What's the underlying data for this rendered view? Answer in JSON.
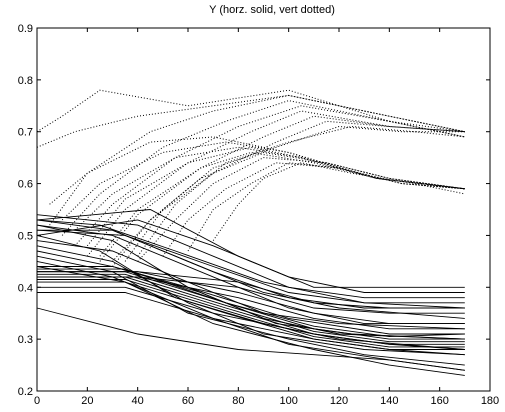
{
  "chart_data": {
    "type": "line",
    "title": "Y (horz. solid, vert dotted)",
    "xlabel": "",
    "ylabel": "",
    "xlim": [
      0,
      180
    ],
    "ylim": [
      0.2,
      0.9
    ],
    "x_ticks": [
      0,
      20,
      40,
      60,
      80,
      100,
      120,
      140,
      160,
      180
    ],
    "y_ticks": [
      0.2,
      0.3,
      0.4,
      0.5,
      0.6,
      0.7,
      0.8,
      0.9
    ],
    "grid": false,
    "legend": "none",
    "series_groups": [
      {
        "style": "solid",
        "color": "#000000",
        "description_visible": "horz.",
        "curves": [
          {
            "x": [
              0,
              35,
              75,
              110,
              140,
              170
            ],
            "y": [
              0.42,
              0.42,
              0.36,
              0.31,
              0.29,
              0.29
            ]
          },
          {
            "x": [
              0,
              35,
              75,
              110,
              140,
              170
            ],
            "y": [
              0.43,
              0.43,
              0.37,
              0.32,
              0.3,
              0.3
            ]
          },
          {
            "x": [
              0,
              35,
              75,
              110,
              140,
              170
            ],
            "y": [
              0.415,
              0.415,
              0.355,
              0.305,
              0.285,
              0.285
            ]
          },
          {
            "x": [
              0,
              35,
              75,
              110,
              140,
              170
            ],
            "y": [
              0.425,
              0.425,
              0.365,
              0.315,
              0.295,
              0.295
            ]
          },
          {
            "x": [
              0,
              35,
              75,
              110,
              140,
              170
            ],
            "y": [
              0.435,
              0.435,
              0.37,
              0.325,
              0.305,
              0.31
            ]
          },
          {
            "x": [
              0,
              35,
              75,
              110,
              140,
              170
            ],
            "y": [
              0.41,
              0.41,
              0.35,
              0.3,
              0.28,
              0.28
            ]
          },
          {
            "x": [
              0,
              40,
              80,
              110,
              140,
              170
            ],
            "y": [
              0.42,
              0.42,
              0.38,
              0.34,
              0.32,
              0.32
            ]
          },
          {
            "x": [
              0,
              40,
              80,
              110,
              140,
              170
            ],
            "y": [
              0.43,
              0.43,
              0.39,
              0.35,
              0.33,
              0.33
            ]
          },
          {
            "x": [
              0,
              30,
              70,
              100,
              130,
              170
            ],
            "y": [
              0.52,
              0.5,
              0.42,
              0.36,
              0.33,
              0.33
            ]
          },
          {
            "x": [
              0,
              30,
              70,
              100,
              130,
              170
            ],
            "y": [
              0.53,
              0.51,
              0.43,
              0.38,
              0.36,
              0.36
            ]
          },
          {
            "x": [
              0,
              35,
              70,
              100,
              130,
              170
            ],
            "y": [
              0.51,
              0.5,
              0.44,
              0.39,
              0.37,
              0.37
            ]
          },
          {
            "x": [
              0,
              40,
              70,
              100,
              130,
              170
            ],
            "y": [
              0.54,
              0.52,
              0.46,
              0.4,
              0.38,
              0.38
            ]
          },
          {
            "x": [
              0,
              45,
              80,
              110,
              140,
              170
            ],
            "y": [
              0.53,
              0.55,
              0.46,
              0.4,
              0.4,
              0.4
            ]
          },
          {
            "x": [
              0,
              40,
              70,
              100,
              130,
              170
            ],
            "y": [
              0.5,
              0.53,
              0.48,
              0.42,
              0.39,
              0.39
            ]
          },
          {
            "x": [
              0,
              30,
              60,
              90,
              120,
              170
            ],
            "y": [
              0.52,
              0.49,
              0.4,
              0.34,
              0.31,
              0.3
            ]
          },
          {
            "x": [
              0,
              25,
              55,
              90,
              120,
              170
            ],
            "y": [
              0.5,
              0.47,
              0.38,
              0.33,
              0.3,
              0.28
            ]
          },
          {
            "x": [
              0,
              30,
              60,
              90,
              130,
              170
            ],
            "y": [
              0.48,
              0.45,
              0.37,
              0.31,
              0.28,
              0.27
            ]
          },
          {
            "x": [
              0,
              30,
              60,
              100,
              130,
              170
            ],
            "y": [
              0.46,
              0.43,
              0.35,
              0.3,
              0.27,
              0.25
            ]
          },
          {
            "x": [
              0,
              30,
              70,
              100,
              140,
              170
            ],
            "y": [
              0.45,
              0.42,
              0.34,
              0.29,
              0.26,
              0.24
            ]
          },
          {
            "x": [
              0,
              35,
              70,
              110,
              140,
              170
            ],
            "y": [
              0.44,
              0.41,
              0.33,
              0.28,
              0.25,
              0.23
            ]
          },
          {
            "x": [
              0,
              40,
              80,
              110,
              140,
              170
            ],
            "y": [
              0.36,
              0.31,
              0.28,
              0.27,
              0.26,
              0.24
            ]
          },
          {
            "x": [
              0,
              35,
              70,
              110,
              140,
              170
            ],
            "y": [
              0.4,
              0.4,
              0.35,
              0.31,
              0.29,
              0.28
            ]
          },
          {
            "x": [
              0,
              35,
              70,
              110,
              140,
              170
            ],
            "y": [
              0.39,
              0.39,
              0.34,
              0.3,
              0.28,
              0.27
            ]
          },
          {
            "x": [
              0,
              40,
              80,
              110,
              140,
              170
            ],
            "y": [
              0.42,
              0.42,
              0.4,
              0.36,
              0.35,
              0.35
            ]
          },
          {
            "x": [
              0,
              40,
              80,
              110,
              140,
              170
            ],
            "y": [
              0.43,
              0.43,
              0.41,
              0.37,
              0.36,
              0.36
            ]
          },
          {
            "x": [
              0,
              30,
              60,
              90,
              120,
              170
            ],
            "y": [
              0.51,
              0.51,
              0.45,
              0.39,
              0.36,
              0.34
            ]
          },
          {
            "x": [
              0,
              30,
              60,
              90,
              120,
              170
            ],
            "y": [
              0.49,
              0.47,
              0.41,
              0.35,
              0.33,
              0.32
            ]
          },
          {
            "x": [
              0,
              30,
              65,
              95,
              125,
              170
            ],
            "y": [
              0.47,
              0.44,
              0.39,
              0.33,
              0.31,
              0.3
            ]
          },
          {
            "x": [
              0,
              25,
              55,
              90,
              130,
              170
            ],
            "y": [
              0.53,
              0.52,
              0.47,
              0.41,
              0.37,
              0.36
            ]
          },
          {
            "x": [
              0,
              30,
              60,
              100,
              140,
              170
            ],
            "y": [
              0.44,
              0.44,
              0.4,
              0.34,
              0.31,
              0.31
            ]
          }
        ]
      },
      {
        "style": "dotted",
        "color": "#000000",
        "description_visible": "vert",
        "curves": [
          {
            "x": [
              0,
              10,
              25,
              60,
              100,
              140,
              170
            ],
            "y": [
              0.7,
              0.73,
              0.78,
              0.75,
              0.78,
              0.72,
              0.7
            ]
          },
          {
            "x": [
              0,
              15,
              40,
              70,
              100,
              140,
              170
            ],
            "y": [
              0.67,
              0.7,
              0.73,
              0.75,
              0.77,
              0.73,
              0.7
            ]
          },
          {
            "x": [
              5,
              20,
              45,
              70,
              100,
              140,
              170
            ],
            "y": [
              0.52,
              0.62,
              0.7,
              0.74,
              0.77,
              0.73,
              0.7
            ]
          },
          {
            "x": [
              10,
              25,
              50,
              75,
              100,
              140,
              170
            ],
            "y": [
              0.5,
              0.58,
              0.67,
              0.72,
              0.76,
              0.72,
              0.69
            ]
          },
          {
            "x": [
              15,
              30,
              55,
              80,
              105,
              140,
              170
            ],
            "y": [
              0.48,
              0.56,
              0.65,
              0.71,
              0.75,
              0.72,
              0.69
            ]
          },
          {
            "x": [
              20,
              35,
              60,
              85,
              105,
              140,
              170
            ],
            "y": [
              0.46,
              0.55,
              0.64,
              0.7,
              0.74,
              0.71,
              0.7
            ]
          },
          {
            "x": [
              25,
              40,
              65,
              90,
              110,
              140,
              170
            ],
            "y": [
              0.45,
              0.54,
              0.63,
              0.69,
              0.73,
              0.71,
              0.7
            ]
          },
          {
            "x": [
              30,
              45,
              70,
              95,
              115,
              140,
              170
            ],
            "y": [
              0.44,
              0.53,
              0.62,
              0.68,
              0.72,
              0.71,
              0.7
            ]
          },
          {
            "x": [
              35,
              50,
              70,
              95,
              120,
              145,
              170
            ],
            "y": [
              0.45,
              0.55,
              0.63,
              0.67,
              0.71,
              0.7,
              0.7
            ]
          },
          {
            "x": [
              40,
              55,
              75,
              100,
              125,
              150,
              170
            ],
            "y": [
              0.46,
              0.56,
              0.64,
              0.68,
              0.71,
              0.7,
              0.69
            ]
          },
          {
            "x": [
              5,
              20,
              45,
              70,
              100,
              135,
              170
            ],
            "y": [
              0.56,
              0.62,
              0.68,
              0.69,
              0.66,
              0.61,
              0.59
            ]
          },
          {
            "x": [
              10,
              25,
              50,
              75,
              100,
              135,
              170
            ],
            "y": [
              0.53,
              0.6,
              0.66,
              0.68,
              0.66,
              0.61,
              0.59
            ]
          },
          {
            "x": [
              15,
              30,
              55,
              80,
              105,
              135,
              170
            ],
            "y": [
              0.51,
              0.58,
              0.65,
              0.67,
              0.65,
              0.61,
              0.59
            ]
          },
          {
            "x": [
              20,
              35,
              60,
              85,
              105,
              135,
              170
            ],
            "y": [
              0.48,
              0.57,
              0.64,
              0.67,
              0.65,
              0.61,
              0.59
            ]
          },
          {
            "x": [
              25,
              40,
              65,
              85,
              110,
              135,
              170
            ],
            "y": [
              0.46,
              0.55,
              0.63,
              0.66,
              0.64,
              0.61,
              0.59
            ]
          },
          {
            "x": [
              30,
              45,
              65,
              90,
              115,
              140,
              170
            ],
            "y": [
              0.45,
              0.53,
              0.61,
              0.66,
              0.64,
              0.61,
              0.59
            ]
          },
          {
            "x": [
              40,
              55,
              70,
              90,
              115,
              140,
              170
            ],
            "y": [
              0.45,
              0.53,
              0.6,
              0.65,
              0.64,
              0.61,
              0.59
            ]
          },
          {
            "x": [
              50,
              60,
              75,
              95,
              120,
              145,
              170
            ],
            "y": [
              0.46,
              0.53,
              0.59,
              0.64,
              0.63,
              0.6,
              0.59
            ]
          },
          {
            "x": [
              60,
              70,
              85,
              100,
              120,
              145,
              170
            ],
            "y": [
              0.47,
              0.55,
              0.6,
              0.64,
              0.63,
              0.6,
              0.59
            ]
          },
          {
            "x": [
              70,
              80,
              90,
              105,
              125,
              150,
              170
            ],
            "y": [
              0.49,
              0.56,
              0.61,
              0.64,
              0.62,
              0.6,
              0.58
            ]
          }
        ]
      }
    ]
  }
}
